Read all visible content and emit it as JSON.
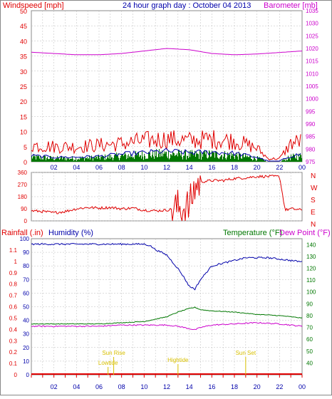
{
  "title": "24 hour graph day : October 04 2013",
  "colors": {
    "red": "#e00000",
    "magenta": "#cc00cc",
    "blue": "#0000aa",
    "green": "#007700",
    "yellow": "#d8c000",
    "frame": "#888888",
    "grid": "#bbbbbb"
  },
  "chart_data": [
    {
      "type": "line",
      "id": "wind-baro",
      "left_label": "Windspeed [mph]",
      "right_label": "Barometer [mb]",
      "left_ticks": [
        "0",
        "5",
        "10",
        "15",
        "20",
        "25",
        "30",
        "35",
        "40",
        "45",
        "50"
      ],
      "right_ticks": [
        "975",
        "980",
        "985",
        "990",
        "995",
        "1000",
        "1005",
        "1010",
        "1015",
        "1020",
        "1025",
        "1030",
        "1035"
      ],
      "left_range": [
        0,
        50
      ],
      "right_range": [
        975,
        1035
      ],
      "x_range": [
        0,
        24
      ],
      "x_ticks": [
        "02",
        "04",
        "06",
        "08",
        "10",
        "12",
        "14",
        "16",
        "18",
        "20",
        "22",
        "00"
      ],
      "grid": true,
      "series": [
        {
          "kind": "barometer",
          "color": "#cc00cc",
          "x": [
            0,
            2,
            4,
            6,
            8,
            10,
            12,
            14,
            16,
            18,
            20,
            22,
            24
          ],
          "values": [
            1018.5,
            1018.0,
            1017.5,
            1017.5,
            1018.0,
            1019.0,
            1020.0,
            1019.5,
            1018.0,
            1017.5,
            1017.8,
            1018.4,
            1019.0
          ]
        },
        {
          "kind": "wind-gust",
          "color": "#e00000",
          "x": [
            0,
            2,
            4,
            6,
            8,
            10,
            12,
            14,
            16,
            18,
            20,
            21,
            22,
            23,
            24
          ],
          "values": [
            5.5,
            5.0,
            5.0,
            5.5,
            6.0,
            7.0,
            7.5,
            7.0,
            7.5,
            7.0,
            4.5,
            1.0,
            1.0,
            6.0,
            7.0
          ]
        },
        {
          "kind": "wind-avg",
          "color": "#0000aa",
          "x": [
            0,
            2,
            4,
            6,
            8,
            10,
            12,
            14,
            16,
            18,
            20,
            21,
            22,
            23,
            24
          ],
          "values": [
            2.0,
            1.5,
            1.5,
            1.8,
            2.5,
            3.0,
            3.5,
            3.0,
            3.2,
            2.8,
            1.5,
            0.2,
            0.2,
            2.0,
            2.5
          ]
        }
      ]
    },
    {
      "type": "scatter",
      "id": "wind-direction",
      "left_ticks": [
        "0",
        "90",
        "180",
        "270",
        "360"
      ],
      "left_range": [
        0,
        360
      ],
      "right_labels": [
        "N",
        "W",
        "S",
        "E",
        "N"
      ],
      "x_range": [
        0,
        24
      ],
      "grid": true,
      "series": [
        {
          "kind": "direction",
          "color": "#e00000",
          "x": [
            0,
            1,
            2,
            3,
            4,
            5,
            6,
            7,
            8,
            9,
            10,
            11,
            12,
            13,
            14,
            14.5,
            15,
            16,
            17,
            18,
            19,
            20,
            21,
            22,
            22.5,
            23,
            24
          ],
          "values": [
            75,
            70,
            60,
            70,
            90,
            100,
            95,
            100,
            90,
            95,
            80,
            75,
            80,
            95,
            100,
            250,
            290,
            300,
            300,
            315,
            320,
            330,
            330,
            330,
            80,
            90,
            80
          ]
        }
      ]
    },
    {
      "type": "line",
      "id": "rain-hum-temp",
      "labels": {
        "rainfall": "Rainfall (.in)",
        "humidity": "Humidity (%)",
        "temperature": "Temperature (°F)",
        "dewpoint": "Dew Point (°F)"
      },
      "left_ticks_humidity": [
        "0",
        "10",
        "20",
        "30",
        "40",
        "50",
        "60",
        "70",
        "80",
        "90",
        "100"
      ],
      "left_ticks_rain": [
        "0",
        "0.1",
        "0.2",
        "0.3",
        "0.4",
        "0.5",
        "0.6",
        "0.7",
        "0.8",
        "0.9",
        "1",
        "1.1"
      ],
      "right_ticks": [
        "40",
        "50",
        "60",
        "70",
        "80",
        "90",
        "100",
        "110",
        "120",
        "130",
        "140"
      ],
      "humidity_range": [
        0,
        100
      ],
      "rain_range": [
        0,
        1.2
      ],
      "temp_range": [
        30,
        145
      ],
      "x_range": [
        0,
        24
      ],
      "x_ticks": [
        "02",
        "04",
        "06",
        "08",
        "10",
        "12",
        "14",
        "16",
        "18",
        "20",
        "22",
        "00"
      ],
      "grid": true,
      "annotations": [
        {
          "text": "Sun Rise",
          "x": 7.3
        },
        {
          "text": "Lowtide",
          "x": 6.8
        },
        {
          "text": "Hightide",
          "x": 13.0
        },
        {
          "text": "Sun Set",
          "x": 19.0
        }
      ],
      "series": [
        {
          "kind": "humidity",
          "color": "#0000aa",
          "x": [
            0,
            2,
            4,
            6,
            8,
            10,
            10.5,
            11,
            12,
            13,
            13.5,
            14,
            14.5,
            15,
            15.5,
            16,
            17,
            18,
            19,
            20,
            21,
            22,
            23,
            24
          ],
          "values": [
            96,
            96,
            96,
            96,
            96,
            96,
            95,
            92,
            88,
            78,
            72,
            65,
            63,
            70,
            75,
            80,
            82,
            84,
            86,
            86,
            86,
            85,
            84,
            83
          ]
        },
        {
          "kind": "temperature",
          "color": "#007700",
          "x": [
            0,
            2,
            4,
            6,
            8,
            10,
            12,
            13,
            14,
            14.5,
            15,
            16,
            18,
            20,
            22,
            24
          ],
          "values": [
            73,
            73,
            73,
            73,
            74,
            75,
            79,
            83,
            86,
            87,
            85,
            84,
            83,
            81,
            80,
            78
          ]
        },
        {
          "kind": "dewpoint",
          "color": "#cc00cc",
          "x": [
            0,
            2,
            4,
            6,
            8,
            10,
            12,
            13,
            14,
            14.5,
            15,
            16,
            18,
            20,
            22,
            24
          ],
          "values": [
            71,
            71,
            71,
            71,
            72,
            72,
            72,
            71,
            69,
            68,
            70,
            72,
            73,
            74,
            73,
            71
          ]
        },
        {
          "kind": "rain",
          "color": "#e00000",
          "x": [
            0,
            24
          ],
          "values": [
            0,
            0
          ]
        }
      ]
    }
  ]
}
